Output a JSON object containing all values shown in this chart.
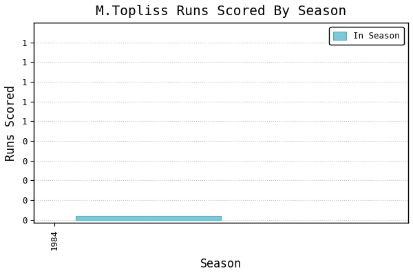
{
  "title": "M.Topliss Runs Scored By Season",
  "xlabel": "Season",
  "ylabel": "Runs Scored",
  "bar_color": "#7EC8D8",
  "bar_edgecolor": "#5AAABB",
  "background_color": "#FFFFFF",
  "legend_label": "In Season",
  "x_start": 1985,
  "x_end": 1992,
  "bar_height": 0.035,
  "xlim": [
    1983.0,
    2001.0
  ],
  "ylim_min": -0.03,
  "ylim_max": 1.85,
  "ytick_vals": [
    0.0,
    0.185,
    0.37,
    0.555,
    0.74,
    0.925,
    1.11,
    1.295,
    1.48,
    1.665
  ],
  "ytick_labels": [
    "0",
    "0",
    "0",
    "0",
    "0",
    "1",
    "1",
    "1",
    "1",
    "1"
  ],
  "xtick_labels": [
    "1984"
  ],
  "xtick_positions": [
    1984
  ],
  "title_fontsize": 14,
  "axis_fontsize": 12,
  "tick_fontsize": 9,
  "grid_color": "#BBBBBB",
  "font_family": "monospace"
}
